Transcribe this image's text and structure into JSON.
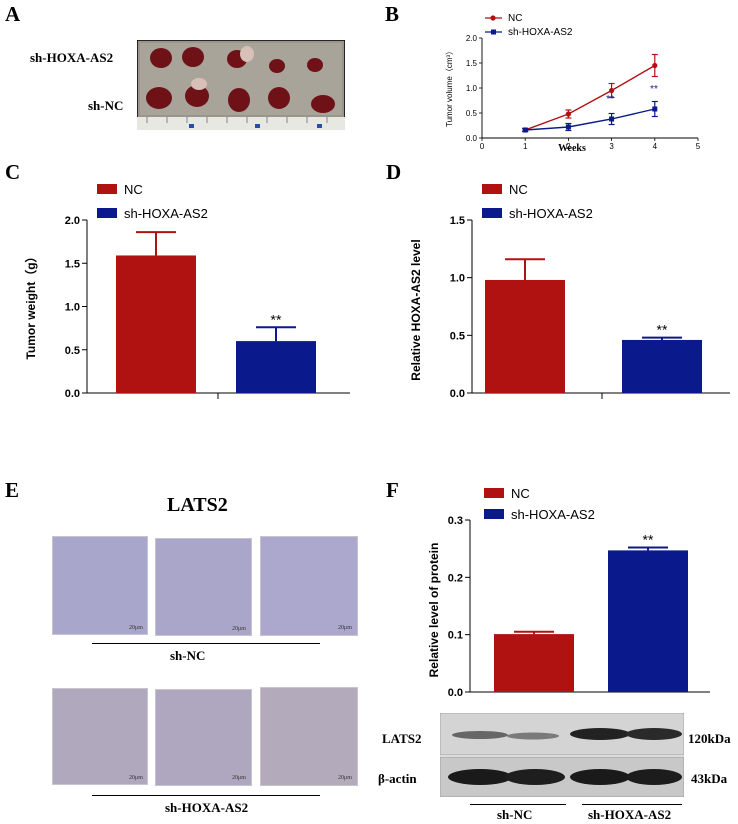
{
  "panels": {
    "A": {
      "letter": "A",
      "row_labels": [
        "sh-HOXA-AS2",
        "sh-NC"
      ]
    },
    "B": {
      "letter": "B",
      "legend": [
        "NC",
        "sh-HOXA-AS2"
      ],
      "ylabel": "Tumor volume（cm³）",
      "xlabel": "Weeks",
      "yticks": [
        "0.0",
        "0.5",
        "1.0",
        "1.5",
        "2.0"
      ],
      "xticks": [
        "0",
        "1",
        "2",
        "3",
        "4",
        "5"
      ],
      "sig": [
        "**",
        "**"
      ]
    },
    "C": {
      "letter": "C",
      "legend": [
        "NC",
        "sh-HOXA-AS2"
      ],
      "ylabel": "Tumor weight（g）",
      "yticks": [
        "0.0",
        "0.5",
        "1.0",
        "1.5",
        "2.0"
      ],
      "sig": "**"
    },
    "D": {
      "letter": "D",
      "legend": [
        "NC",
        "sh-HOXA-AS2"
      ],
      "ylabel": "Relative HOXA-AS2 level",
      "yticks": [
        "0.0",
        "0.5",
        "1.0",
        "1.5"
      ],
      "sig": "**"
    },
    "E": {
      "letter": "E",
      "title": "LATS2",
      "group1": "sh-NC",
      "group2": "sh-HOXA-AS2",
      "scale": "20μm"
    },
    "F": {
      "letter": "F",
      "legend": [
        "NC",
        "sh-HOXA-AS2"
      ],
      "ylabel": "Relative level of protein",
      "yticks": [
        "0.0",
        "0.1",
        "0.2",
        "0.3"
      ],
      "sig": "**",
      "blot_rows": [
        "LATS2",
        "β-actin"
      ],
      "blot_sizes": [
        "120kDa",
        "43kDa"
      ],
      "groups": [
        "sh-NC",
        "sh-HOXA-AS2"
      ]
    }
  },
  "colors": {
    "nc": "#b01212",
    "sh": "#0a1a8c"
  },
  "chart_data": [
    {
      "type": "line",
      "x": [
        1,
        2,
        3,
        4
      ],
      "series": [
        {
          "name": "NC",
          "values": [
            0.16,
            0.48,
            0.95,
            1.45
          ],
          "err": [
            0.03,
            0.08,
            0.14,
            0.22
          ]
        },
        {
          "name": "sh-HOXA-AS2",
          "values": [
            0.16,
            0.22,
            0.38,
            0.58
          ],
          "err": [
            0.03,
            0.07,
            0.11,
            0.15
          ]
        }
      ],
      "ylabel": "Tumor volume（cm³）",
      "xlabel": "Weeks",
      "xlim": [
        0,
        5
      ],
      "ylim": [
        0,
        2
      ]
    },
    {
      "type": "bar",
      "categories": [
        "NC",
        "sh-HOXA-AS2"
      ],
      "values": [
        1.59,
        0.6
      ],
      "err": [
        0.27,
        0.16
      ],
      "ylabel": "Tumor weight（g）",
      "ylim": [
        0,
        2
      ]
    },
    {
      "type": "bar",
      "categories": [
        "NC",
        "sh-HOXA-AS2"
      ],
      "values": [
        0.98,
        0.46
      ],
      "err": [
        0.18,
        0.02
      ],
      "ylabel": "Relative HOXA-AS2 level",
      "ylim": [
        0,
        1.5
      ]
    },
    {
      "type": "bar",
      "categories": [
        "NC",
        "sh-HOXA-AS2"
      ],
      "values": [
        0.101,
        0.247
      ],
      "err": [
        0.004,
        0.005
      ],
      "ylabel": "Relative level of protein",
      "ylim": [
        0,
        0.3
      ]
    }
  ]
}
